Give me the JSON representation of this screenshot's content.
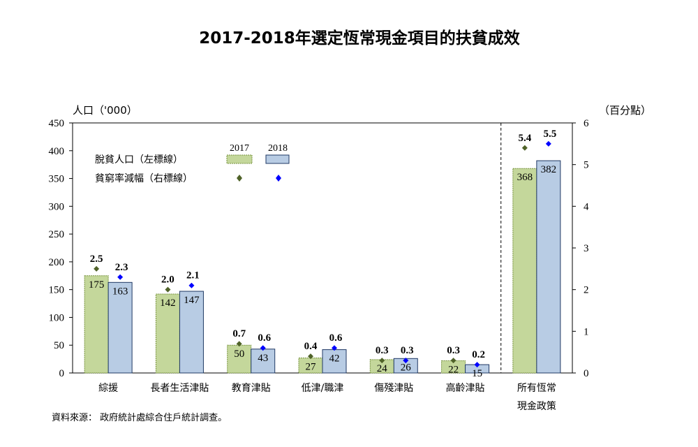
{
  "chart_data": {
    "type": "bar",
    "title": "2017-2018年選定恆常現金項目的扶貧成效",
    "ylabel_left": "人口（'000）",
    "ylabel_right": "（百分點）",
    "ylim_left": [
      0,
      450
    ],
    "yticks_left": [
      "0",
      "50",
      "100",
      "150",
      "200",
      "250",
      "300",
      "350",
      "400",
      "450"
    ],
    "ylim_right": [
      0,
      6
    ],
    "yticks_right": [
      "0",
      "1",
      "2",
      "3",
      "4",
      "5",
      "6"
    ],
    "categories": [
      [
        "綜援"
      ],
      [
        "長者生活津貼"
      ],
      [
        "教育津貼"
      ],
      [
        "低津/職津"
      ],
      [
        "傷殘津貼"
      ],
      [
        "高齡津貼"
      ],
      [
        "所有恆常",
        "現金政策"
      ]
    ],
    "legend": {
      "row1_label": "脫貧人口（左標線）",
      "row2_label": "貧窮率減幅（右標線）",
      "years": [
        "2017",
        "2018"
      ]
    },
    "bar_series": [
      {
        "name": "2017",
        "values": [
          175,
          142,
          50,
          27,
          24,
          22,
          368
        ],
        "labels": [
          "175",
          "142",
          "50",
          "27",
          "24",
          "22",
          "368"
        ],
        "color": "#c4d79b",
        "border": "#76923c"
      },
      {
        "name": "2018",
        "values": [
          163,
          147,
          43,
          42,
          26,
          15,
          382
        ],
        "labels": [
          "163",
          "147",
          "43",
          "42",
          "26",
          "15",
          "382"
        ],
        "color": "#b8cce4",
        "border": "#1f3864"
      }
    ],
    "point_series": [
      {
        "name": "2017",
        "values": [
          2.5,
          2.0,
          0.7,
          0.4,
          0.3,
          0.3,
          5.4
        ],
        "labels": [
          "2.5",
          "2.0",
          "0.7",
          "0.4",
          "0.3",
          "0.3",
          "5.4"
        ],
        "color": "#4f6228"
      },
      {
        "name": "2018",
        "values": [
          2.3,
          2.1,
          0.6,
          0.6,
          0.3,
          0.2,
          5.5
        ],
        "labels": [
          "2.3",
          "2.1",
          "0.6",
          "0.6",
          "0.3",
          "0.2",
          "5.5"
        ],
        "color": "#0000ff"
      }
    ],
    "source": "資料來源：  政府統計處綜合住戶統計調查。"
  }
}
